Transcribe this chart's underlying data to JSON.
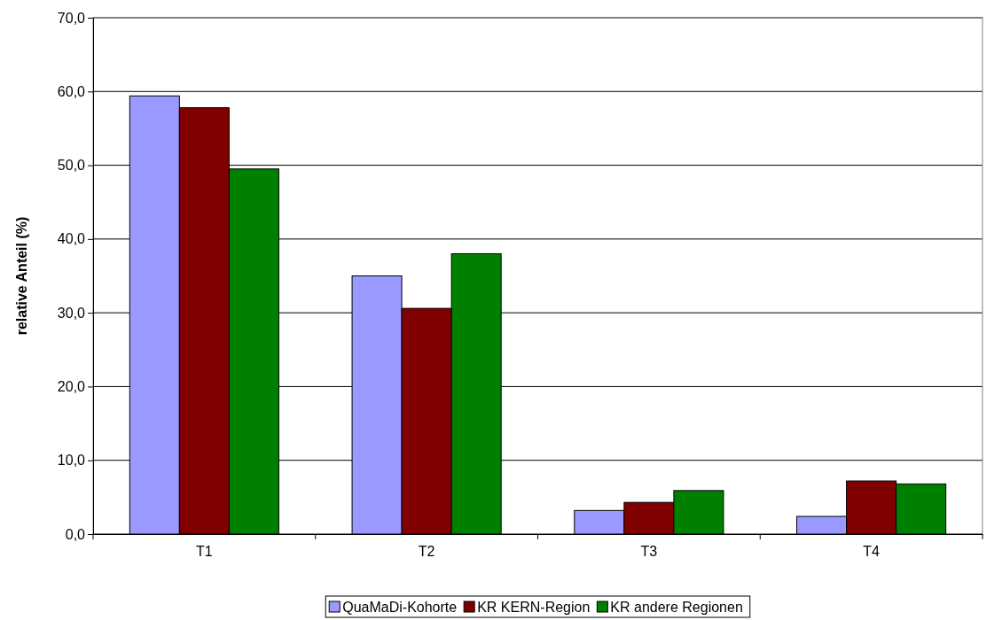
{
  "chart_data": {
    "type": "bar",
    "ylabel": "relative Anteil (%)",
    "categories": [
      "T1",
      "T2",
      "T3",
      "T4"
    ],
    "series": [
      {
        "name": "QuaMaDi-Kohorte",
        "color": "#9999ff",
        "values": [
          59.4,
          35.0,
          3.2,
          2.4
        ]
      },
      {
        "name": "KR KERN-Region",
        "color": "#800000",
        "values": [
          57.8,
          30.6,
          4.3,
          7.2
        ]
      },
      {
        "name": "KR andere Regionen",
        "color": "#008000",
        "values": [
          49.5,
          38.0,
          5.9,
          6.8
        ]
      }
    ],
    "ylim": [
      0,
      70
    ],
    "yticks": [
      {
        "value": 0,
        "label": "0,0"
      },
      {
        "value": 10,
        "label": "10,0"
      },
      {
        "value": 20,
        "label": "20,0"
      },
      {
        "value": 30,
        "label": "30,0"
      },
      {
        "value": 40,
        "label": "40,0"
      },
      {
        "value": 50,
        "label": "50,0"
      },
      {
        "value": 60,
        "label": "60,0"
      },
      {
        "value": 70,
        "label": "70,0"
      }
    ],
    "grid": "y",
    "legend": "bottom"
  }
}
